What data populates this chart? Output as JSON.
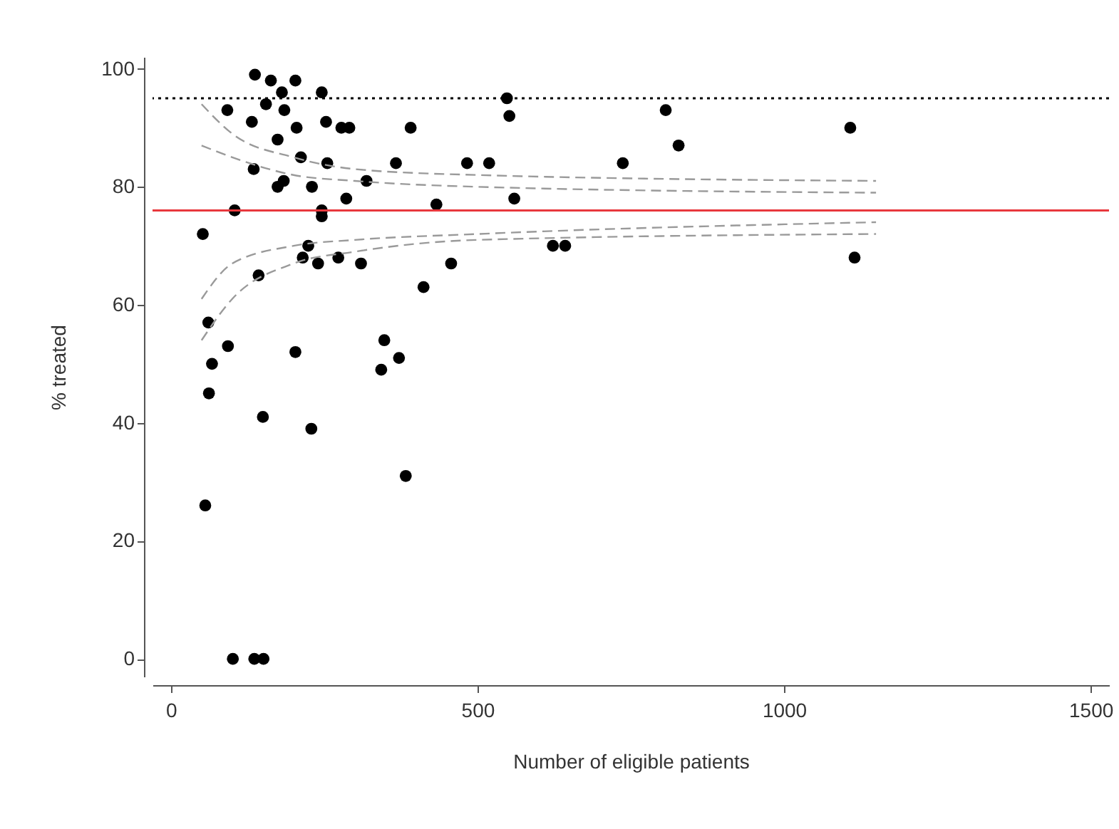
{
  "chart_data": {
    "type": "scatter",
    "xlabel": "Number of eligible patients",
    "ylabel": "% treated",
    "xlim": [
      -30,
      1530
    ],
    "xticks": [
      0,
      500,
      1000,
      1500
    ],
    "ylim": [
      -3,
      102
    ],
    "yticks": [
      0,
      20,
      40,
      60,
      80,
      100
    ],
    "grid": false,
    "x": [
      137,
      163,
      203,
      181,
      246,
      92,
      155,
      185,
      132,
      253,
      205,
      278,
      291,
      391,
      174,
      212,
      135,
      255,
      367,
      483,
      519,
      319,
      184,
      174,
      230,
      286,
      433,
      104,
      246,
      246,
      52,
      224,
      215,
      240,
      273,
      310,
      457,
      143,
      412,
      623,
      643,
      560,
      548,
      552,
      61,
      93,
      67,
      203,
      348,
      372,
      343,
      807,
      828,
      1108,
      1115,
      737,
      56,
      62,
      150,
      229,
      383,
      101,
      136,
      151
    ],
    "series": [
      {
        "color": "#000000",
        "marker": "circle",
        "values": [
          99,
          98,
          98,
          96,
          96,
          93,
          94,
          93,
          91,
          91,
          90,
          90,
          90,
          90,
          88,
          85,
          83,
          84,
          84,
          84,
          84,
          81,
          81,
          80,
          80,
          78,
          77,
          76,
          76,
          75,
          72,
          70,
          68,
          67,
          68,
          67,
          67,
          65,
          63,
          70,
          70,
          78,
          95,
          92,
          57,
          53,
          50,
          52,
          54,
          51,
          49,
          93,
          87,
          90,
          68,
          84,
          26,
          45,
          41,
          39,
          31,
          0,
          0,
          0
        ]
      },
      {
        "type": "line",
        "line_style": "dashed",
        "color": "#9a9a9a",
        "x": [
          50,
          100,
          200,
          300,
          500,
          1150
        ],
        "values": [
          94,
          89,
          85,
          83,
          82,
          81
        ]
      },
      {
        "type": "line",
        "line_style": "dashed",
        "color": "#9a9a9a",
        "x": [
          50,
          100,
          200,
          300,
          500,
          1150
        ],
        "values": [
          87,
          85,
          82,
          81,
          80,
          79
        ]
      },
      {
        "type": "line",
        "line_style": "dashed",
        "color": "#9a9a9a",
        "x": [
          50,
          100,
          200,
          300,
          500,
          1150
        ],
        "values": [
          61,
          67,
          70,
          71,
          72,
          74
        ]
      },
      {
        "type": "line",
        "line_style": "dashed",
        "color": "#9a9a9a",
        "x": [
          50,
          100,
          200,
          300,
          500,
          1150
        ],
        "values": [
          54,
          61,
          67,
          69,
          71,
          72
        ]
      }
    ],
    "ref_lines": [
      {
        "axis": "y",
        "value": 76,
        "color": "#e8383d",
        "line_style": "solid"
      },
      {
        "axis": "y",
        "value": 95,
        "color": "#000000",
        "line_style": "dotted"
      }
    ]
  }
}
